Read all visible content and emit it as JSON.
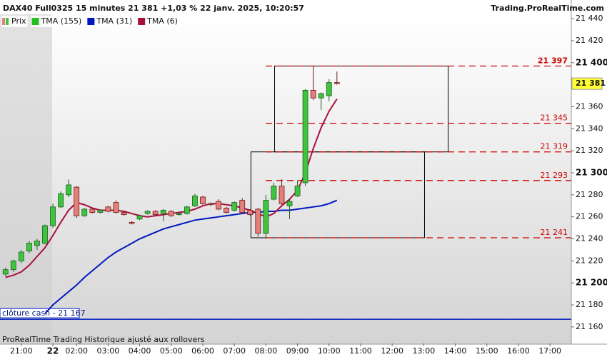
{
  "chart_data": {
    "type": "candlestick",
    "title": "DAX40 Full0325 15 minutes 21 381 +1,03 % 22 janv. 2025, 10:20:57",
    "source": "Trading.ProRealTime.com",
    "footer": "ProRealTime Trading  Historique ajusté aux rollovers",
    "xlim": [
      -0.7,
      71.7
    ],
    "xticks": [
      {
        "value": 2,
        "label": "21:00"
      },
      {
        "value": 6,
        "label": "22"
      },
      {
        "value": 9,
        "label": "02:00"
      },
      {
        "value": 13,
        "label": "03:00"
      },
      {
        "value": 17,
        "label": "04:00"
      },
      {
        "value": 21,
        "label": "05:00"
      },
      {
        "value": 25,
        "label": "06:00"
      },
      {
        "value": 29,
        "label": "07:00"
      },
      {
        "value": 33,
        "label": "08:00"
      },
      {
        "value": 37,
        "label": "09:00"
      },
      {
        "value": 41,
        "label": "10:00"
      },
      {
        "value": 45,
        "label": "11:00"
      },
      {
        "value": 49,
        "label": "12:00"
      },
      {
        "value": 53,
        "label": "13:00"
      },
      {
        "value": 57,
        "label": "14:00"
      },
      {
        "value": 61,
        "label": "15:00"
      },
      {
        "value": 65,
        "label": "16:00"
      },
      {
        "value": 69,
        "label": "17:00"
      }
    ],
    "ylim": [
      21145,
      21444
    ],
    "yticks": [
      {
        "value": 21160,
        "label": "21 160"
      },
      {
        "value": 21180,
        "label": "21 180"
      },
      {
        "value": 21200,
        "label": "21 200"
      },
      {
        "value": 21220,
        "label": "21 220"
      },
      {
        "value": 21240,
        "label": "21 240"
      },
      {
        "value": 21260,
        "label": "21 260"
      },
      {
        "value": 21280,
        "label": "21 280"
      },
      {
        "value": 21300,
        "label": "21 300"
      },
      {
        "value": 21320,
        "label": "21 320"
      },
      {
        "value": 21340,
        "label": "21 340"
      },
      {
        "value": 21360,
        "label": "21 360"
      },
      {
        "value": 21380,
        "label": "21 380"
      },
      {
        "value": 21400,
        "label": "21 400"
      },
      {
        "value": 21420,
        "label": "21 420"
      },
      {
        "value": 21440,
        "label": "21 440"
      }
    ],
    "candles": {
      "name": "Prix",
      "up_color": "#3fc43f",
      "down_color": "#e57f79",
      "open": [
        21208,
        21212,
        21220,
        21229,
        21234,
        21236,
        21252,
        21269,
        21280,
        21287,
        21261,
        21267,
        21264,
        21269,
        21273,
        21264,
        21255,
        21258,
        21263,
        21265,
        21263,
        21265,
        21262,
        21263,
        21270,
        21278,
        21272,
        21274,
        21268,
        21266,
        21275,
        21266,
        21267,
        21245,
        21276,
        21288,
        21270,
        21279,
        21291,
        21375,
        21368,
        21370,
        21382
      ],
      "high": [
        21214,
        21221,
        21230,
        21238,
        21240,
        21253,
        21272,
        21283,
        21294,
        21288,
        21268,
        21268,
        21267,
        21270,
        21275,
        21265,
        21256,
        21262,
        21266,
        21266,
        21267,
        21266,
        21264,
        21270,
        21281,
        21279,
        21273,
        21276,
        21269,
        21274,
        21277,
        21267,
        21268,
        21280,
        21291,
        21294,
        21276,
        21293,
        21376,
        21397,
        21373,
        21385,
        21392
      ],
      "low": [
        21206,
        21210,
        21218,
        21227,
        21230,
        21235,
        21250,
        21268,
        21278,
        21259,
        21260,
        21263,
        21263,
        21264,
        21263,
        21261,
        21253,
        21257,
        21262,
        21261,
        21256,
        21260,
        21261,
        21262,
        21269,
        21271,
        21270,
        21266,
        21263,
        21265,
        21263,
        21261,
        21242,
        21240,
        21275,
        21271,
        21258,
        21278,
        21288,
        21366,
        21357,
        21365,
        21380
      ],
      "close": [
        21212,
        21220,
        21228,
        21236,
        21238,
        21252,
        21269,
        21281,
        21289,
        21261,
        21267,
        21264,
        21266,
        21265,
        21264,
        21262,
        21254,
        21261,
        21265,
        21262,
        21266,
        21261,
        21263,
        21269,
        21279,
        21272,
        21271,
        21267,
        21264,
        21273,
        21264,
        21262,
        21245,
        21275,
        21288,
        21272,
        21274,
        21288,
        21375,
        21368,
        21372,
        21382,
        21381
      ]
    },
    "series": [
      {
        "name": "TMA (155)",
        "color": "#1fc01f",
        "values": [
          null,
          null,
          null,
          null,
          null,
          null,
          null,
          null,
          null,
          null,
          null,
          null,
          null,
          null,
          null,
          null,
          null,
          null,
          null,
          null,
          null,
          null,
          null,
          null,
          null,
          null,
          null,
          null,
          null,
          null,
          null,
          null,
          null,
          null,
          null,
          null,
          null,
          null,
          null,
          null,
          null,
          null,
          null
        ]
      },
      {
        "name": "TMA (31)",
        "color": "#0018c0",
        "values": [
          null,
          null,
          null,
          null,
          null,
          21172,
          21180,
          21186,
          21192,
          21198,
          21205,
          21211,
          21217,
          21223,
          21228,
          21232,
          21236,
          21240,
          21243,
          21246,
          21249,
          21251,
          21253,
          21255,
          21257,
          21258,
          21259,
          21260,
          21261,
          21262,
          21263,
          21264,
          21264,
          21265,
          21265,
          21266,
          21266,
          21267,
          21268,
          21269,
          21270,
          21272,
          21275
        ]
      },
      {
        "name": "TMA (6)",
        "color": "#a8103c",
        "values": [
          21205,
          21207,
          21210,
          21216,
          21224,
          21232,
          21243,
          21255,
          21266,
          21273,
          21271,
          21268,
          21266,
          21266,
          21266,
          21265,
          21263,
          21261,
          21260,
          21261,
          21262,
          21263,
          21264,
          21265,
          21267,
          21270,
          21272,
          21272,
          21271,
          21270,
          21268,
          21266,
          21263,
          21260,
          21263,
          21270,
          21276,
          21284,
          21300,
          21322,
          21341,
          21356,
          21367
        ]
      }
    ],
    "levels": [
      {
        "value": 21397,
        "label": "21 397"
      },
      {
        "value": 21345,
        "label": "21 345"
      },
      {
        "value": 21319,
        "label": "21 319"
      },
      {
        "value": 21293,
        "label": "21 293"
      },
      {
        "value": 21241,
        "label": "21 241"
      }
    ],
    "level_color": "#d00000",
    "boxes": [
      {
        "x": [
          34.1,
          56.1
        ],
        "y": [
          21397,
          21319
        ]
      },
      {
        "x": [
          31.1,
          53.1
        ],
        "y": [
          21319,
          21241
        ]
      }
    ],
    "last_price": {
      "value": 21381,
      "label": "21 381"
    },
    "cash_close": {
      "value": 21167,
      "label": "clôture cash -  21 167",
      "color": "#0018c0"
    }
  }
}
